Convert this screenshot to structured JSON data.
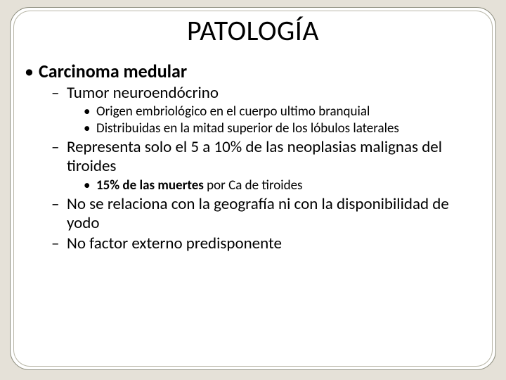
{
  "colors": {
    "page_bg": "#e5e1d8",
    "panel_bg": "#ffffff",
    "panel_border": "#8a8a7a",
    "inner_ring": "#b7b5a6",
    "text": "#000000"
  },
  "typography": {
    "title_fontsize": 40,
    "lvl1_fontsize": 26,
    "lvl2_fontsize": 23,
    "lvl3_fontsize": 19,
    "font_family": "Calibri"
  },
  "layout": {
    "slide_w": 720,
    "slide_h": 540,
    "panel_radius": 28
  },
  "title": "PATOLOGÍA",
  "bullets": {
    "lvl1_0": "Carcinoma medular",
    "lvl2_0": "Tumor neuroendócrino",
    "lvl3_0": "Origen embriológico en el cuerpo ultimo branquial",
    "lvl3_1": "Distribuidas en la mitad superior de los lóbulos laterales",
    "lvl2_1": "Representa solo el 5 a 10% de las neoplasias malignas del tiroides",
    "lvl3_2_bold": "15% de las muertes ",
    "lvl3_2_rest": "por Ca de tiroides",
    "lvl2_2": "No se relaciona con la geografía ni con la disponibilidad de yodo",
    "lvl2_3": "No factor externo predisponente"
  }
}
